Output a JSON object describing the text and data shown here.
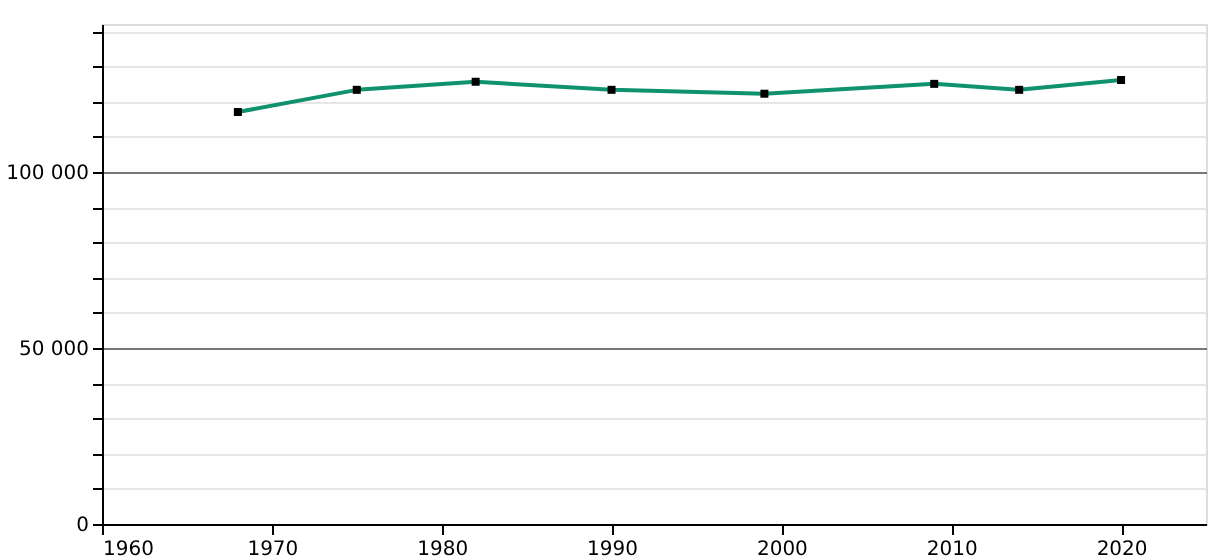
{
  "chart_data": {
    "type": "line",
    "x": [
      1968,
      1975,
      1982,
      1990,
      1999,
      2009,
      2014,
      2020
    ],
    "series": [
      {
        "color": "#10926e",
        "values": [
          117000,
          123300,
          125600,
          123300,
          122200,
          125000,
          123300,
          126100
        ]
      }
    ],
    "xlim": [
      1960,
      2025
    ],
    "xticks": [
      1960,
      1970,
      1980,
      1990,
      2000,
      2010,
      2020
    ],
    "ylim": [
      0,
      142000
    ],
    "yticks": [
      {
        "value": 0,
        "label": "0"
      },
      {
        "value": 10000,
        "label": null
      },
      {
        "value": 20000,
        "label": null
      },
      {
        "value": 30000,
        "label": null
      },
      {
        "value": 40000,
        "label": null
      },
      {
        "value": 50000,
        "label": "50 000"
      },
      {
        "value": 60000,
        "label": null
      },
      {
        "value": 70000,
        "label": null
      },
      {
        "value": 80000,
        "label": null
      },
      {
        "value": 90000,
        "label": null
      },
      {
        "value": 100000,
        "label": "100 000"
      },
      {
        "value": 110000,
        "label": null
      },
      {
        "value": 120000,
        "label": null
      },
      {
        "value": 130000,
        "label": null
      },
      {
        "value": 140000,
        "label": null
      }
    ],
    "grid": "y",
    "marker": "square",
    "line_style": "solid",
    "legend": false
  }
}
